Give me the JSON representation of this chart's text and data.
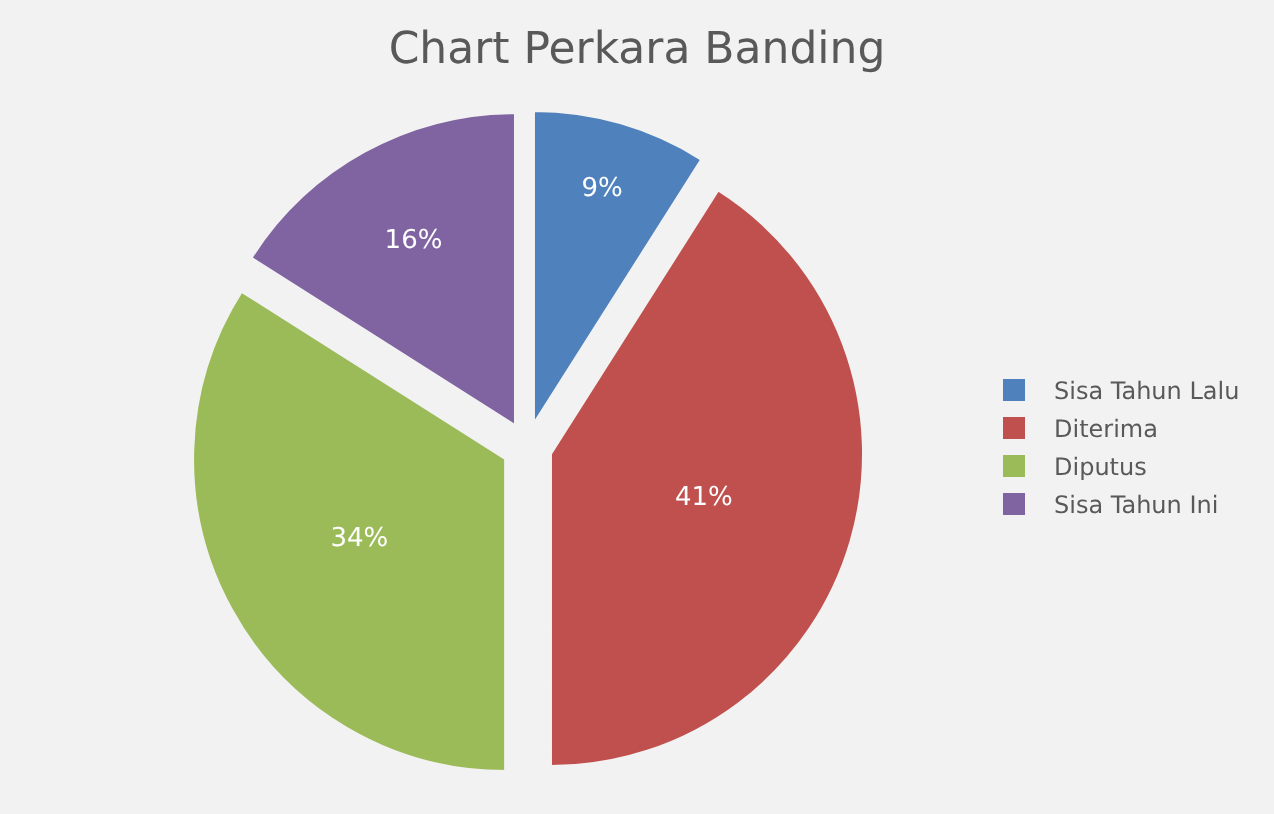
{
  "chart_data": {
    "type": "pie",
    "title": "Chart Perkara Banding",
    "categories": [
      "Sisa Tahun Lalu",
      "Diterima",
      "Diputus",
      "Sisa Tahun Ini"
    ],
    "values": [
      9,
      41,
      34,
      16
    ],
    "colors": [
      "#4f81bd",
      "#c0504d",
      "#9bbb59",
      "#8064a2"
    ],
    "value_labels": [
      "9%",
      "41%",
      "34%",
      "16%"
    ],
    "legend": "right"
  }
}
